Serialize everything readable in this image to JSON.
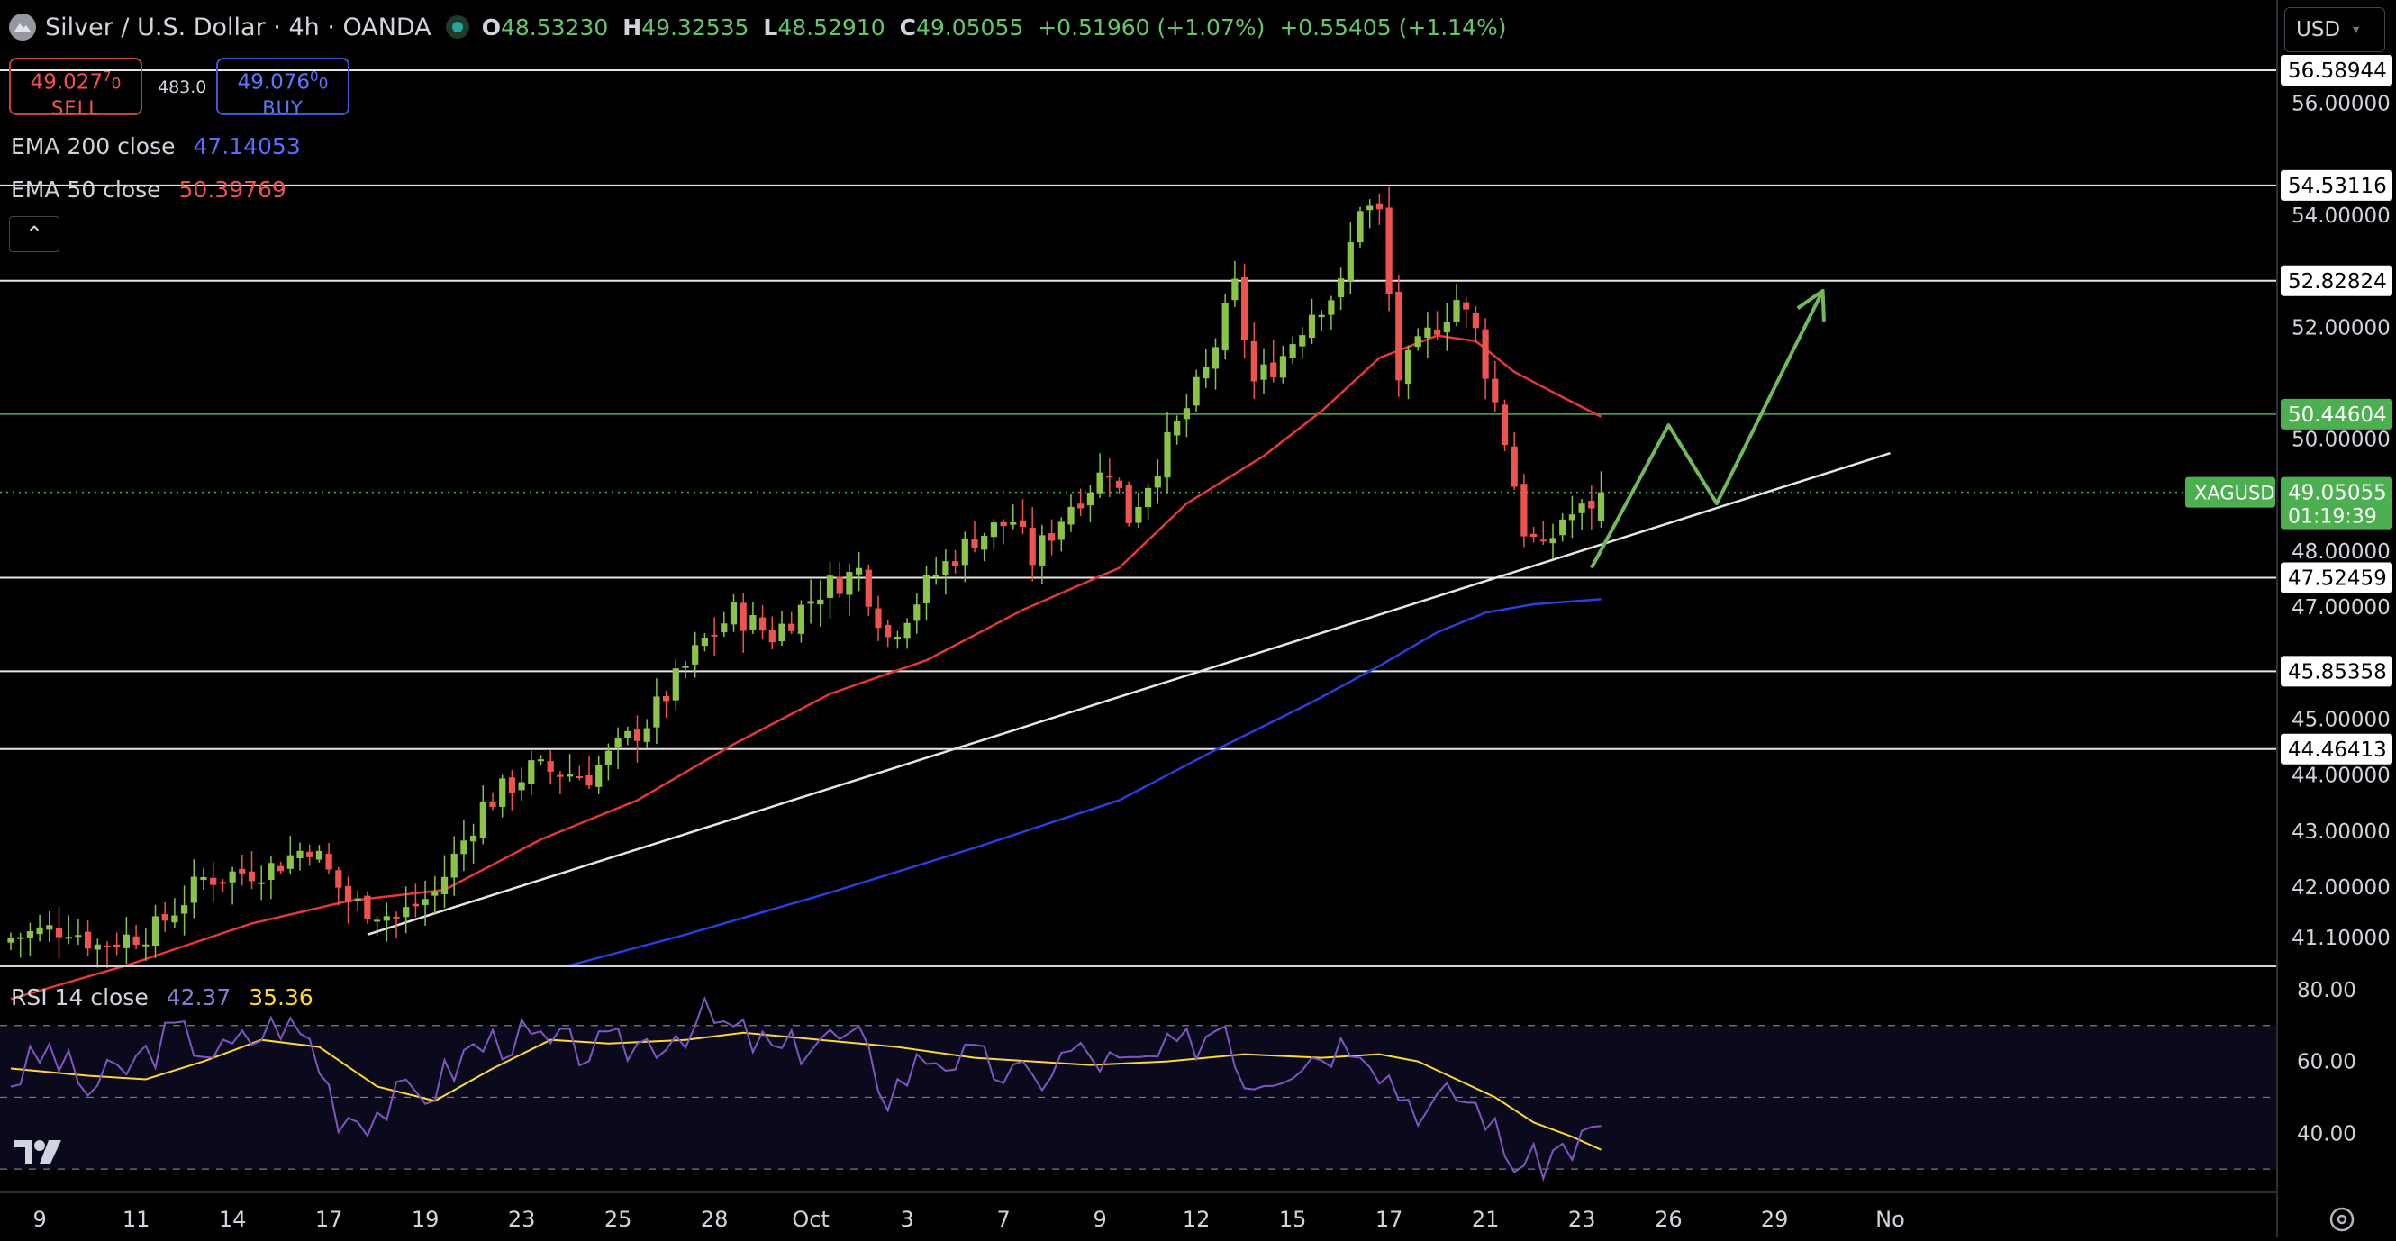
{
  "header": {
    "symbol_title": "Silver / U.S. Dollar · 4h · OANDA",
    "open_label": "O",
    "open": "48.53230",
    "high_label": "H",
    "high": "49.32535",
    "low_label": "L",
    "low": "48.52910",
    "close_label": "C",
    "close": "49.05055",
    "change": "+0.51960 (+1.07%)",
    "change2": "+0.55405 (+1.14%)"
  },
  "trade": {
    "sell_price": "49.027",
    "sell_sup": "7",
    "sell_frac": "0",
    "sell_label": "SELL",
    "spread": "483.0",
    "buy_price": "49.076",
    "buy_sup": "0",
    "buy_frac": "0",
    "buy_label": "BUY"
  },
  "indicators": {
    "ema200_label": "EMA 200 close",
    "ema200_value": "47.14053",
    "ema50_label": "EMA 50 close",
    "ema50_value": "50.39769",
    "rsi_label": "RSI 14 close",
    "rsi_value": "42.37",
    "rsi_ma_value": "35.36"
  },
  "currency": {
    "label": "USD"
  },
  "colors": {
    "background": "#000000",
    "up": "#8bc34a",
    "down": "#ef5350",
    "ema50": "#e53935",
    "ema200": "#2a3fe0",
    "rsi": "#7e57c2",
    "rsi_ma": "#fdd835",
    "projection": "#72b95b",
    "current_price_bg": "#4caf50"
  },
  "chart_data": {
    "type": "candlestick",
    "symbol": "XAGUSD",
    "timeframe": "4h",
    "price_axis": {
      "ylim": [
        40.6,
        57.2
      ],
      "tick_labels": [
        "56.00000",
        "54.00000",
        "52.00000",
        "50.00000",
        "48.00000",
        "47.00000",
        "45.00000",
        "44.00000",
        "43.00000",
        "42.00000",
        "41.10000"
      ],
      "tick_values": [
        56,
        54,
        52,
        50,
        48,
        47,
        45,
        44,
        43,
        42,
        41.1
      ]
    },
    "x_axis": {
      "tick_labels": [
        "9",
        "11",
        "14",
        "17",
        "19",
        "23",
        "25",
        "28",
        "Oct",
        "3",
        "7",
        "9",
        "12",
        "15",
        "17",
        "21",
        "23",
        "26",
        "29",
        "No"
      ],
      "tick_index": [
        3,
        13,
        23,
        33,
        43,
        53,
        63,
        73,
        83,
        93,
        103,
        113,
        123,
        133,
        143,
        153,
        163,
        172,
        183,
        195
      ]
    },
    "horizontal_levels": [
      {
        "value": 56.58944,
        "label": "56.58944"
      },
      {
        "value": 54.53116,
        "label": "54.53116"
      },
      {
        "value": 52.82824,
        "label": "52.82824"
      },
      {
        "value": 50.44604,
        "label": "50.44604",
        "highlight": true
      },
      {
        "value": 47.52459,
        "label": "47.52459"
      },
      {
        "value": 45.85358,
        "label": "45.85358"
      },
      {
        "value": 44.46413,
        "label": "44.46413"
      }
    ],
    "current_price": {
      "value": 49.05055,
      "label": "49.05055",
      "countdown": "01:19:39",
      "symbol": "XAGUSD"
    },
    "trendline": [
      {
        "i": 37,
        "y": 41.15
      },
      {
        "i": 195,
        "y": 49.75
      }
    ],
    "projection": [
      {
        "i": 164,
        "y": 47.7
      },
      {
        "i": 172,
        "y": 50.25
      },
      {
        "i": 177,
        "y": 48.85
      },
      {
        "i": 188,
        "y": 52.65
      }
    ],
    "waypoints": [
      {
        "i": 0,
        "y": 41.1
      },
      {
        "i": 6,
        "y": 41.3
      },
      {
        "i": 9,
        "y": 40.95
      },
      {
        "i": 15,
        "y": 41.25
      },
      {
        "i": 20,
        "y": 42.15
      },
      {
        "i": 27,
        "y": 42.35
      },
      {
        "i": 31,
        "y": 42.75
      },
      {
        "i": 35,
        "y": 41.75
      },
      {
        "i": 40,
        "y": 41.45
      },
      {
        "i": 44,
        "y": 41.9
      },
      {
        "i": 49,
        "y": 43.45
      },
      {
        "i": 54,
        "y": 44.1
      },
      {
        "i": 60,
        "y": 44.0
      },
      {
        "i": 66,
        "y": 44.95
      },
      {
        "i": 72,
        "y": 46.4
      },
      {
        "i": 75,
        "y": 46.9
      },
      {
        "i": 79,
        "y": 46.5
      },
      {
        "i": 84,
        "y": 47.3
      },
      {
        "i": 88,
        "y": 47.65
      },
      {
        "i": 91,
        "y": 46.45
      },
      {
        "i": 96,
        "y": 47.6
      },
      {
        "i": 100,
        "y": 48.25
      },
      {
        "i": 104,
        "y": 48.55
      },
      {
        "i": 106,
        "y": 47.85
      },
      {
        "i": 110,
        "y": 48.85
      },
      {
        "i": 114,
        "y": 49.5
      },
      {
        "i": 116,
        "y": 48.6
      },
      {
        "i": 120,
        "y": 49.9
      },
      {
        "i": 124,
        "y": 51.2
      },
      {
        "i": 127,
        "y": 52.7
      },
      {
        "i": 129,
        "y": 51.0
      },
      {
        "i": 132,
        "y": 51.5
      },
      {
        "i": 135,
        "y": 52.3
      },
      {
        "i": 138,
        "y": 52.7
      },
      {
        "i": 140,
        "y": 54.2
      },
      {
        "i": 142,
        "y": 54.0
      },
      {
        "i": 144,
        "y": 51.1
      },
      {
        "i": 147,
        "y": 51.85
      },
      {
        "i": 150,
        "y": 52.5
      },
      {
        "i": 152,
        "y": 51.9
      },
      {
        "i": 155,
        "y": 50.0
      },
      {
        "i": 157,
        "y": 48.4
      },
      {
        "i": 159,
        "y": 47.95
      },
      {
        "i": 161,
        "y": 48.6
      },
      {
        "i": 163,
        "y": 48.7
      },
      {
        "i": 165,
        "y": 49.05
      }
    ],
    "ema50_points": [
      {
        "i": 0,
        "y": 40.0
      },
      {
        "i": 12,
        "y": 40.6
      },
      {
        "i": 25,
        "y": 41.35
      },
      {
        "i": 35,
        "y": 41.75
      },
      {
        "i": 45,
        "y": 41.95
      },
      {
        "i": 55,
        "y": 42.85
      },
      {
        "i": 65,
        "y": 43.55
      },
      {
        "i": 75,
        "y": 44.55
      },
      {
        "i": 85,
        "y": 45.45
      },
      {
        "i": 95,
        "y": 46.05
      },
      {
        "i": 105,
        "y": 46.95
      },
      {
        "i": 115,
        "y": 47.7
      },
      {
        "i": 122,
        "y": 48.85
      },
      {
        "i": 130,
        "y": 49.7
      },
      {
        "i": 136,
        "y": 50.5
      },
      {
        "i": 142,
        "y": 51.45
      },
      {
        "i": 148,
        "y": 51.85
      },
      {
        "i": 152,
        "y": 51.75
      },
      {
        "i": 156,
        "y": 51.2
      },
      {
        "i": 161,
        "y": 50.75
      },
      {
        "i": 165,
        "y": 50.4
      }
    ],
    "ema200_points": [
      {
        "i": 58,
        "y": 40.6
      },
      {
        "i": 70,
        "y": 41.15
      },
      {
        "i": 85,
        "y": 41.9
      },
      {
        "i": 100,
        "y": 42.7
      },
      {
        "i": 115,
        "y": 43.55
      },
      {
        "i": 125,
        "y": 44.45
      },
      {
        "i": 135,
        "y": 45.3
      },
      {
        "i": 142,
        "y": 45.95
      },
      {
        "i": 148,
        "y": 46.55
      },
      {
        "i": 153,
        "y": 46.9
      },
      {
        "i": 158,
        "y": 47.05
      },
      {
        "i": 165,
        "y": 47.14
      }
    ],
    "rsi": {
      "ylim": [
        24,
        86
      ],
      "tick_labels": [
        "80.00",
        "60.00",
        "40.00"
      ],
      "tick_values": [
        80,
        60,
        40
      ],
      "band": [
        30,
        70
      ],
      "rsi_points": [
        {
          "i": 0,
          "y": 55
        },
        {
          "i": 4,
          "y": 63
        },
        {
          "i": 8,
          "y": 52
        },
        {
          "i": 12,
          "y": 58
        },
        {
          "i": 17,
          "y": 68
        },
        {
          "i": 22,
          "y": 62
        },
        {
          "i": 28,
          "y": 71
        },
        {
          "i": 31,
          "y": 66
        },
        {
          "i": 34,
          "y": 46
        },
        {
          "i": 37,
          "y": 45
        },
        {
          "i": 40,
          "y": 49
        },
        {
          "i": 44,
          "y": 53
        },
        {
          "i": 48,
          "y": 64
        },
        {
          "i": 52,
          "y": 67
        },
        {
          "i": 56,
          "y": 64
        },
        {
          "i": 62,
          "y": 63
        },
        {
          "i": 68,
          "y": 67
        },
        {
          "i": 72,
          "y": 72
        },
        {
          "i": 76,
          "y": 67
        },
        {
          "i": 80,
          "y": 62
        },
        {
          "i": 84,
          "y": 67
        },
        {
          "i": 88,
          "y": 65
        },
        {
          "i": 91,
          "y": 51
        },
        {
          "i": 95,
          "y": 62
        },
        {
          "i": 100,
          "y": 60
        },
        {
          "i": 106,
          "y": 54
        },
        {
          "i": 110,
          "y": 63
        },
        {
          "i": 116,
          "y": 58
        },
        {
          "i": 122,
          "y": 64
        },
        {
          "i": 126,
          "y": 72
        },
        {
          "i": 128,
          "y": 55
        },
        {
          "i": 134,
          "y": 61
        },
        {
          "i": 140,
          "y": 67
        },
        {
          "i": 144,
          "y": 52
        },
        {
          "i": 147,
          "y": 46
        },
        {
          "i": 150,
          "y": 51
        },
        {
          "i": 153,
          "y": 46
        },
        {
          "i": 155,
          "y": 34
        },
        {
          "i": 158,
          "y": 31
        },
        {
          "i": 161,
          "y": 36
        },
        {
          "i": 163,
          "y": 38
        },
        {
          "i": 165,
          "y": 42
        }
      ],
      "ma_points": [
        {
          "i": 0,
          "y": 58
        },
        {
          "i": 8,
          "y": 56
        },
        {
          "i": 14,
          "y": 55
        },
        {
          "i": 20,
          "y": 60
        },
        {
          "i": 26,
          "y": 66
        },
        {
          "i": 32,
          "y": 64
        },
        {
          "i": 38,
          "y": 53
        },
        {
          "i": 44,
          "y": 49
        },
        {
          "i": 50,
          "y": 58
        },
        {
          "i": 56,
          "y": 66
        },
        {
          "i": 62,
          "y": 65
        },
        {
          "i": 70,
          "y": 66
        },
        {
          "i": 76,
          "y": 68
        },
        {
          "i": 84,
          "y": 66
        },
        {
          "i": 92,
          "y": 64
        },
        {
          "i": 100,
          "y": 61
        },
        {
          "i": 106,
          "y": 60
        },
        {
          "i": 112,
          "y": 59
        },
        {
          "i": 120,
          "y": 60
        },
        {
          "i": 128,
          "y": 62
        },
        {
          "i": 136,
          "y": 61
        },
        {
          "i": 142,
          "y": 62
        },
        {
          "i": 146,
          "y": 60
        },
        {
          "i": 150,
          "y": 55
        },
        {
          "i": 154,
          "y": 50
        },
        {
          "i": 158,
          "y": 43
        },
        {
          "i": 162,
          "y": 39
        },
        {
          "i": 165,
          "y": 35.36
        }
      ]
    }
  }
}
